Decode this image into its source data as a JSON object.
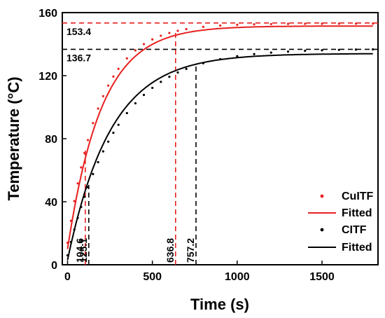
{
  "chart_data": {
    "type": "line",
    "xlabel": "Time (s)",
    "ylabel": "Temperature (°C)",
    "xlim": [
      -30,
      1800
    ],
    "ylim": [
      0,
      160
    ],
    "xticks": [
      0,
      500,
      1000,
      1500
    ],
    "yticks": [
      0,
      40,
      80,
      120,
      160
    ],
    "colors": {
      "red": "#e8201f",
      "black": "#000000"
    },
    "legend_position": "bottom-right",
    "series": [
      {
        "name": "CuITF",
        "kind": "points",
        "color": "#e8201f",
        "T0": 14,
        "Tmax": 153,
        "tau": 190,
        "t": [
          0,
          20,
          40,
          60,
          80,
          100,
          120,
          150,
          180,
          210,
          240,
          270,
          300,
          350,
          400,
          450,
          500,
          550,
          600,
          650,
          700,
          800,
          900,
          1000,
          1100,
          1200,
          1300,
          1400,
          1500,
          1600,
          1700,
          1800
        ]
      },
      {
        "name": "Fitted",
        "kind": "line",
        "color": "#e8201f",
        "T0": 10,
        "Tmax": 151.5,
        "tau": 200
      },
      {
        "name": "CITF",
        "kind": "points",
        "color": "#000000",
        "T0": 6,
        "Tmax": 137,
        "tau": 300,
        "t": [
          0,
          20,
          40,
          60,
          80,
          100,
          120,
          150,
          180,
          210,
          240,
          270,
          300,
          350,
          400,
          450,
          500,
          550,
          600,
          650,
          700,
          800,
          900,
          1000,
          1100,
          1200,
          1300,
          1400,
          1500,
          1600,
          1700,
          1800
        ]
      },
      {
        "name": "Fitted",
        "kind": "line",
        "color": "#000000",
        "T0": 3,
        "Tmax": 134,
        "tau": 255
      }
    ],
    "hlines": [
      {
        "y": 153.4,
        "label": "153.4",
        "color": "#e8201f"
      },
      {
        "y": 136.7,
        "label": "136.7",
        "color": "#000000"
      }
    ],
    "vlines": [
      {
        "x": 104.6,
        "label": "104.6",
        "color": "#e8201f"
      },
      {
        "x": 125.1,
        "label": "125.1",
        "color": "#000000"
      },
      {
        "x": 636.8,
        "label": "636.8",
        "color": "#e8201f"
      },
      {
        "x": 757.2,
        "label": "757.2",
        "color": "#000000"
      }
    ]
  }
}
